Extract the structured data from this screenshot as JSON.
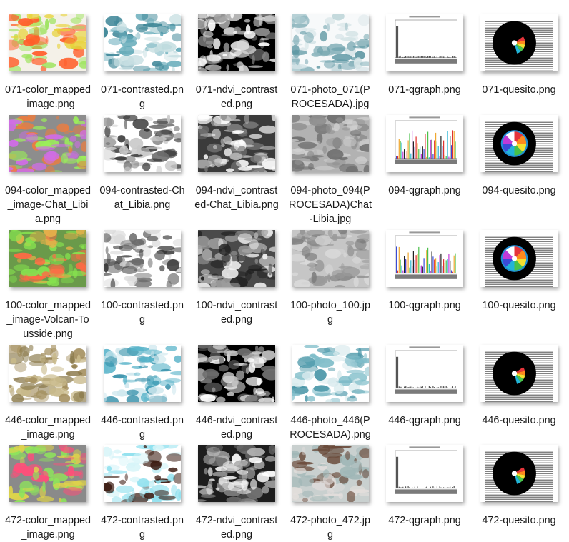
{
  "files": [
    {
      "name": "071-color_mapped_image.png",
      "kind": "colormap",
      "palette": [
        "#f4f1e8",
        "#ff5e2a",
        "#9be35a",
        "#e8d33a"
      ]
    },
    {
      "name": "071-contrasted.png",
      "kind": "contrasted",
      "palette": [
        "#ffffff",
        "#62a9b8",
        "#c7dfe2",
        "#3c8596"
      ]
    },
    {
      "name": "071-ndvi_contrasted.png",
      "kind": "ndvi",
      "palette": [
        "#000000",
        "#ffffff",
        "#8a8a8a",
        "#d8d8d8"
      ]
    },
    {
      "name": "071-photo_071(PROCESADA).jpg",
      "kind": "photo",
      "palette": [
        "#f7f9fa",
        "#8fb7bf",
        "#d4e3e6",
        "#5f98a4"
      ]
    },
    {
      "name": "071-qgraph.png",
      "kind": "qgraph",
      "palette": [
        "#ffffff",
        "#444444"
      ]
    },
    {
      "name": "071-quesito.png",
      "kind": "quesito",
      "palette": [
        "#000000",
        "#ffffff"
      ]
    },
    {
      "name": "094-color_mapped_image-Chat_Libia.png",
      "kind": "colormap",
      "palette": [
        "#8d8d8d",
        "#9bee5a",
        "#d06de6",
        "#f07c3c"
      ]
    },
    {
      "name": "094-contrasted-Chat_Libia.png",
      "kind": "contrasted",
      "palette": [
        "#ffffff",
        "#6d6d6d",
        "#c9c9c9",
        "#2f2f2f"
      ]
    },
    {
      "name": "094-ndvi_contrasted-Chat_Libia.png",
      "kind": "ndvi",
      "palette": [
        "#3b3b3b",
        "#ffffff",
        "#7a7a7a",
        "#b5b5b5"
      ]
    },
    {
      "name": "094-photo_094(PROCESADA)Chat-Libia.jpg",
      "kind": "photo",
      "palette": [
        "#b2b2b2",
        "#6f6f6f",
        "#d0d0d0",
        "#8e8e8e"
      ]
    },
    {
      "name": "094-qgraph.png",
      "kind": "qgraph",
      "palette": [
        "#ffffff",
        "#444444"
      ]
    },
    {
      "name": "094-quesito.png",
      "kind": "quesito",
      "palette": [
        "#000000",
        "#ffffff"
      ]
    },
    {
      "name": "100-color_mapped_image-Volcan-Tousside.png",
      "kind": "colormap",
      "palette": [
        "#6a9a4a",
        "#86e24f",
        "#e8b24a",
        "#ff6a45"
      ]
    },
    {
      "name": "100-contrasted.png",
      "kind": "contrasted",
      "palette": [
        "#ffffff",
        "#6b6b6b",
        "#dcdcdc",
        "#3a3a3a"
      ]
    },
    {
      "name": "100-ndvi_contrasted.png",
      "kind": "ndvi",
      "palette": [
        "#4a4a4a",
        "#f0f0f0",
        "#202020",
        "#9c9c9c"
      ]
    },
    {
      "name": "100-photo_100.jpg",
      "kind": "photo",
      "palette": [
        "#c6c6c6",
        "#9a9a9a",
        "#dadada",
        "#7d7d7d"
      ]
    },
    {
      "name": "100-qgraph.png",
      "kind": "qgraph",
      "palette": [
        "#ffffff",
        "#444444"
      ]
    },
    {
      "name": "100-quesito.png",
      "kind": "quesito",
      "palette": [
        "#000000",
        "#ffffff"
      ]
    },
    {
      "name": "446-color_mapped_image.png",
      "kind": "colormap",
      "palette": [
        "#ffffff",
        "#a48f5e",
        "#c8b98a",
        "#8b7a4b"
      ]
    },
    {
      "name": "446-contrasted.png",
      "kind": "contrasted",
      "palette": [
        "#ffffff",
        "#56b2c8",
        "#d0e8ee",
        "#2c8aa5"
      ]
    },
    {
      "name": "446-ndvi_contrasted.png",
      "kind": "ndvi",
      "palette": [
        "#000000",
        "#ffffff",
        "#6d6d6d",
        "#c6c6c6"
      ]
    },
    {
      "name": "446-photo_446(PROCESADA).png",
      "kind": "photo",
      "palette": [
        "#ffffff",
        "#7fbdc9",
        "#d6e9ec",
        "#4b97a8"
      ]
    },
    {
      "name": "446-qgraph.png",
      "kind": "qgraph",
      "palette": [
        "#ffffff",
        "#444444"
      ]
    },
    {
      "name": "446-quesito.png",
      "kind": "quesito",
      "palette": [
        "#000000",
        "#ffffff"
      ]
    },
    {
      "name": "472-color_mapped_image.png",
      "kind": "colormap",
      "palette": [
        "#8a8a8a",
        "#8ee45c",
        "#ff4e7a",
        "#e0d44a"
      ]
    },
    {
      "name": "472-contrasted.png",
      "kind": "contrasted",
      "palette": [
        "#ffffff",
        "#8fe0ee",
        "#d6f4f8",
        "#3b1a10"
      ]
    },
    {
      "name": "472-ndvi_contrasted.png",
      "kind": "ndvi",
      "palette": [
        "#1d1d1d",
        "#ffffff",
        "#6a6a6a",
        "#b0b0b0"
      ]
    },
    {
      "name": "472-photo_472.jpg",
      "kind": "photo",
      "palette": [
        "#c9d0cf",
        "#9fb6b6",
        "#e3dedc",
        "#6a4a3a"
      ]
    },
    {
      "name": "472-qgraph.png",
      "kind": "qgraph",
      "palette": [
        "#ffffff",
        "#444444"
      ]
    },
    {
      "name": "472-quesito.png",
      "kind": "quesito",
      "palette": [
        "#000000",
        "#ffffff"
      ]
    }
  ]
}
